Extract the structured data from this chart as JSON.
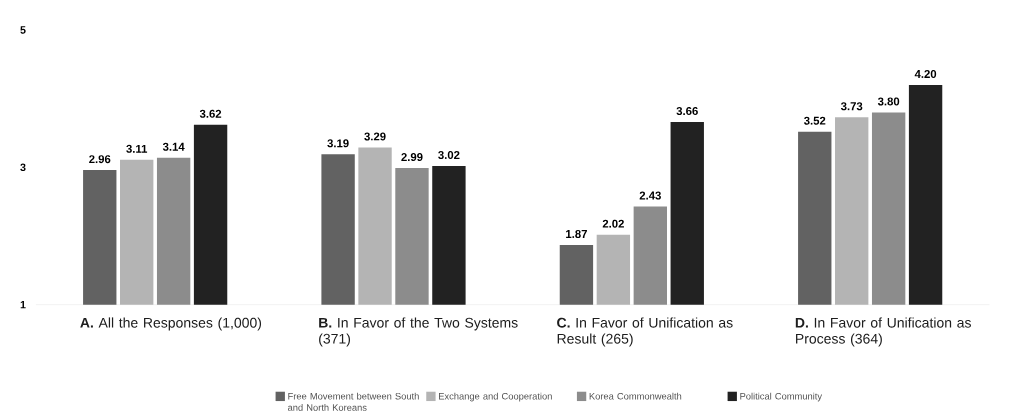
{
  "chart_data": {
    "type": "bar",
    "categories": [
      "**A.** All the Responses (1,000)",
      "**B.** In Favor of the Two Systems (371)",
      "**C.** In Favor of Unification as Result (265)",
      "**D.** In Favor of Unification as Process (364)"
    ],
    "series": [
      {
        "name": "Free Movement between South and North Koreans",
        "color": "#626262",
        "values": [
          2.96,
          3.19,
          1.87,
          3.52
        ],
        "value_labels": [
          "2.96",
          "3.19",
          "1.87",
          "3.52"
        ]
      },
      {
        "name": "Exchange and Cooperation",
        "color": "#b4b4b4",
        "values": [
          3.11,
          3.29,
          2.02,
          3.73
        ],
        "value_labels": [
          "3.11",
          "3.29",
          "2.02",
          "3.73"
        ]
      },
      {
        "name": "Korea Commonwealth",
        "color": "#8c8c8c",
        "values": [
          3.14,
          2.99,
          2.43,
          3.8
        ],
        "value_labels": [
          "3.14",
          "2.99",
          "2.43",
          "3.80"
        ]
      },
      {
        "name": "Political Community",
        "color": "#222222",
        "values": [
          3.62,
          3.02,
          3.66,
          4.2
        ],
        "value_labels": [
          "3.62",
          "3.02",
          "3.66",
          "4.20"
        ]
      }
    ],
    "ylim": [
      1,
      5
    ],
    "yticks": [
      1,
      3,
      5
    ],
    "grid": false,
    "legend": "bottom"
  }
}
